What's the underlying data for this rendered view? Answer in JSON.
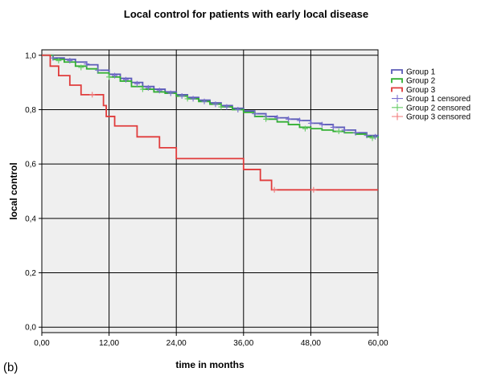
{
  "panel_label": "(b)",
  "chart_data": {
    "type": "line",
    "title": "Local control for patients with early local disease",
    "xlabel": "time in months",
    "ylabel": "local control",
    "xlim": [
      0,
      60
    ],
    "ylim": [
      -0.02,
      1.02
    ],
    "x_ticks": [
      0,
      12,
      24,
      36,
      48,
      60
    ],
    "x_tick_labels": [
      "0,00",
      "12,00",
      "24,00",
      "36,00",
      "48,00",
      "60,00"
    ],
    "y_ticks": [
      0,
      0.2,
      0.4,
      0.6,
      0.8,
      1.0
    ],
    "y_tick_labels": [
      "0,0",
      "0,2",
      "0,4",
      "0,6",
      "0,8",
      "1,0"
    ],
    "grid": true,
    "legend_position": "right",
    "series": [
      {
        "name": "Group 1",
        "color": "#5b5bb8",
        "steps": [
          [
            0,
            1.0
          ],
          [
            2,
            0.99
          ],
          [
            4,
            0.985
          ],
          [
            6,
            0.975
          ],
          [
            8,
            0.965
          ],
          [
            10,
            0.945
          ],
          [
            12,
            0.93
          ],
          [
            14,
            0.915
          ],
          [
            16,
            0.9
          ],
          [
            18,
            0.885
          ],
          [
            20,
            0.875
          ],
          [
            22,
            0.865
          ],
          [
            24,
            0.855
          ],
          [
            26,
            0.845
          ],
          [
            28,
            0.835
          ],
          [
            30,
            0.825
          ],
          [
            32,
            0.815
          ],
          [
            34,
            0.805
          ],
          [
            36,
            0.795
          ],
          [
            38,
            0.785
          ],
          [
            40,
            0.775
          ],
          [
            42,
            0.77
          ],
          [
            44,
            0.765
          ],
          [
            46,
            0.76
          ],
          [
            48,
            0.75
          ],
          [
            50,
            0.745
          ],
          [
            52,
            0.735
          ],
          [
            54,
            0.725
          ],
          [
            56,
            0.715
          ],
          [
            58,
            0.705
          ],
          [
            60,
            0.7
          ]
        ]
      },
      {
        "name": "Group 2",
        "color": "#33b033",
        "steps": [
          [
            0,
            1.0
          ],
          [
            2,
            0.985
          ],
          [
            4,
            0.975
          ],
          [
            6,
            0.96
          ],
          [
            8,
            0.95
          ],
          [
            10,
            0.935
          ],
          [
            12,
            0.92
          ],
          [
            14,
            0.905
          ],
          [
            16,
            0.885
          ],
          [
            18,
            0.875
          ],
          [
            20,
            0.865
          ],
          [
            22,
            0.86
          ],
          [
            24,
            0.85
          ],
          [
            26,
            0.84
          ],
          [
            28,
            0.83
          ],
          [
            30,
            0.82
          ],
          [
            32,
            0.81
          ],
          [
            34,
            0.8
          ],
          [
            36,
            0.79
          ],
          [
            38,
            0.775
          ],
          [
            40,
            0.765
          ],
          [
            42,
            0.755
          ],
          [
            44,
            0.745
          ],
          [
            46,
            0.735
          ],
          [
            48,
            0.73
          ],
          [
            50,
            0.725
          ],
          [
            52,
            0.72
          ],
          [
            54,
            0.715
          ],
          [
            56,
            0.71
          ],
          [
            58,
            0.7
          ],
          [
            60,
            0.695
          ]
        ]
      },
      {
        "name": "Group 3",
        "color": "#e03c3c",
        "steps": [
          [
            0,
            1.0
          ],
          [
            1.5,
            0.96
          ],
          [
            3,
            0.925
          ],
          [
            5,
            0.89
          ],
          [
            7,
            0.855
          ],
          [
            11,
            0.815
          ],
          [
            11.5,
            0.775
          ],
          [
            13,
            0.74
          ],
          [
            17,
            0.7
          ],
          [
            21,
            0.66
          ],
          [
            24,
            0.62
          ],
          [
            36,
            0.58
          ],
          [
            39,
            0.54
          ],
          [
            41,
            0.505
          ],
          [
            60,
            0.505
          ]
        ]
      }
    ],
    "censored": [
      {
        "name": "Group 1 censored",
        "color": "#7a6fd0",
        "x": [
          2,
          5,
          8,
          10,
          13,
          15,
          17,
          19,
          21,
          23,
          25,
          27,
          29,
          31,
          33,
          35,
          38,
          40,
          42,
          44,
          46,
          48,
          50,
          52,
          54,
          56,
          58,
          59.5
        ],
        "y": [
          0.99,
          0.98,
          0.968,
          0.945,
          0.925,
          0.91,
          0.895,
          0.88,
          0.87,
          0.86,
          0.85,
          0.84,
          0.83,
          0.82,
          0.81,
          0.8,
          0.785,
          0.775,
          0.77,
          0.765,
          0.76,
          0.75,
          0.745,
          0.735,
          0.725,
          0.715,
          0.705,
          0.7
        ]
      },
      {
        "name": "Group 2 censored",
        "color": "#66cc66",
        "x": [
          3,
          7,
          12,
          18,
          26,
          32,
          40,
          47,
          53,
          59
        ],
        "y": [
          0.98,
          0.955,
          0.92,
          0.875,
          0.84,
          0.81,
          0.765,
          0.73,
          0.72,
          0.695
        ]
      },
      {
        "name": "Group 3 censored",
        "color": "#f07a7a",
        "x": [
          9,
          41.5,
          48.5
        ],
        "y": [
          0.855,
          0.505,
          0.505
        ]
      }
    ]
  }
}
